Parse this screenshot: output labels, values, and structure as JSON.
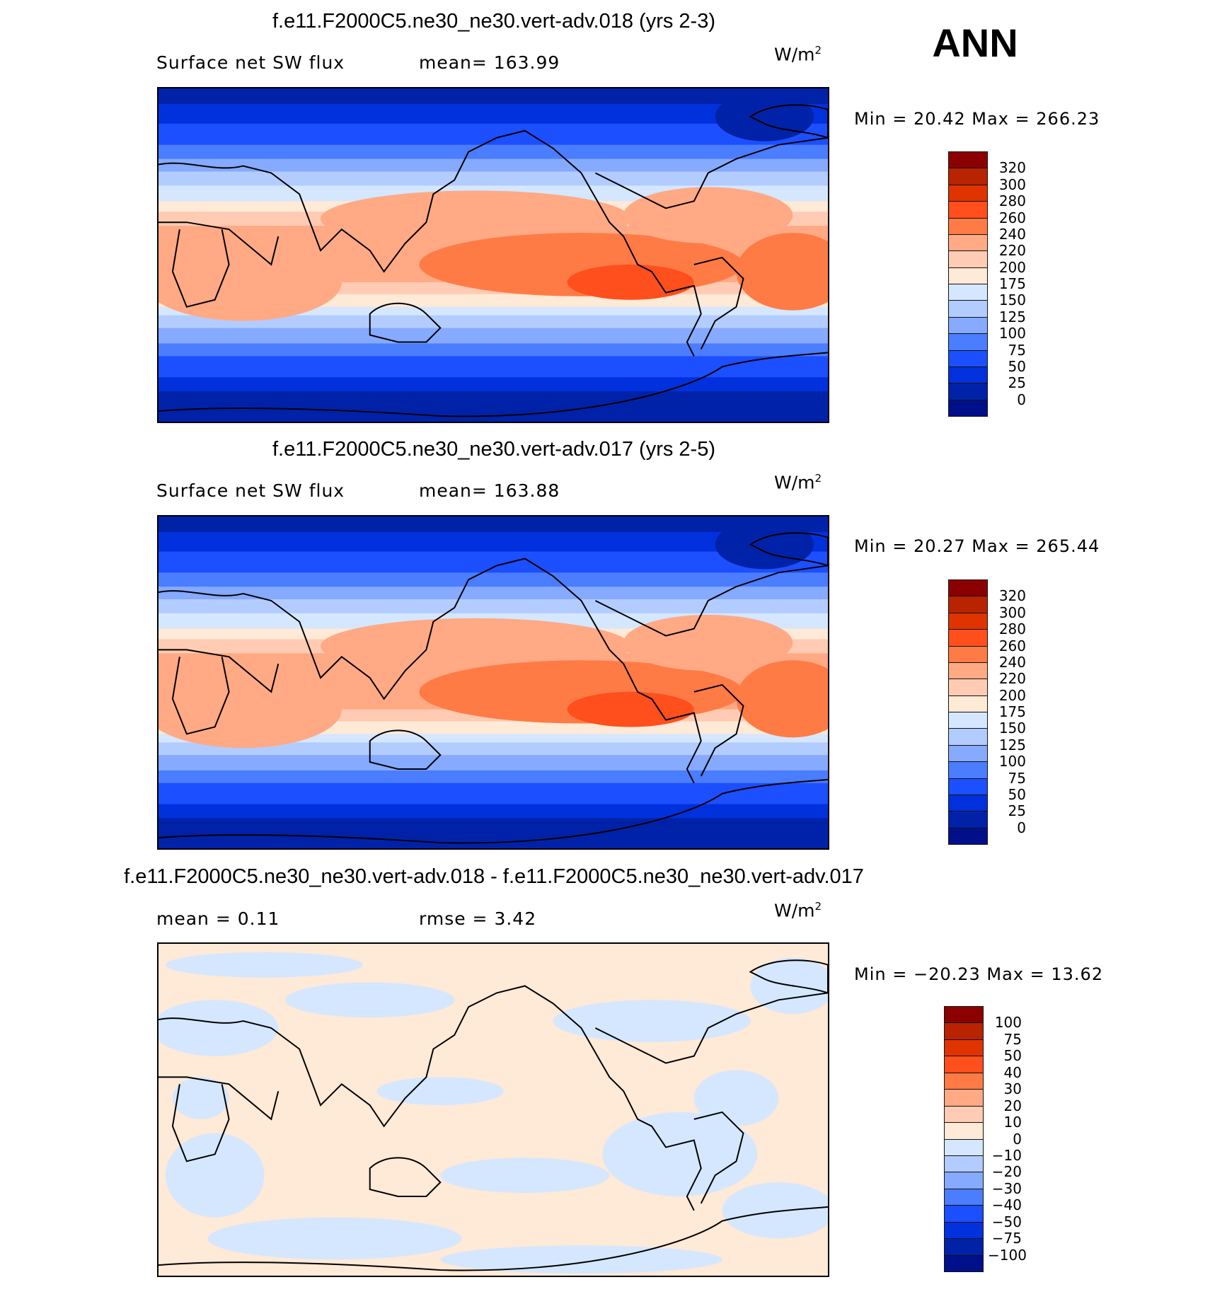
{
  "header": {
    "season": "ANN"
  },
  "panels": [
    {
      "title": "f.e11.F2000C5.ne30_ne30.vert-adv.018 (yrs 2-3)",
      "left_stat": "Surface net SW flux",
      "right_stat": "mean= 163.99",
      "units": "W/m",
      "units_sup": "2",
      "minmax": "Min =   20.42 Max = 266.23",
      "type": "field"
    },
    {
      "title": "f.e11.F2000C5.ne30_ne30.vert-adv.017 (yrs 2-5)",
      "left_stat": "Surface net SW flux",
      "right_stat": "mean= 163.88",
      "units": "W/m",
      "units_sup": "2",
      "minmax": "Min =   20.27 Max = 265.44",
      "type": "field"
    },
    {
      "title": "f.e11.F2000C5.ne30_ne30.vert-adv.018 - f.e11.F2000C5.ne30_ne30.vert-adv.017",
      "left_stat": "mean =    0.11",
      "right_stat": "rmse =    3.42",
      "units": "W/m",
      "units_sup": "2",
      "minmax": "Min = −20.23 Max =   13.62",
      "type": "diff"
    }
  ],
  "chart_data": [
    {
      "type": "heatmap",
      "title": "f.e11.F2000C5.ne30_ne30.vert-adv.018 (yrs 2-3)",
      "variable": "Surface net SW flux",
      "units": "W/m2",
      "mean": 163.99,
      "min": 20.42,
      "max": 266.23,
      "colorbar_levels": [
        "320",
        "300",
        "280",
        "260",
        "240",
        "220",
        "200",
        "175",
        "150",
        "125",
        "100",
        "75",
        "50",
        "25",
        "0"
      ]
    },
    {
      "type": "heatmap",
      "title": "f.e11.F2000C5.ne30_ne30.vert-adv.017 (yrs 2-5)",
      "variable": "Surface net SW flux",
      "units": "W/m2",
      "mean": 163.88,
      "min": 20.27,
      "max": 265.44,
      "colorbar_levels": [
        "320",
        "300",
        "280",
        "260",
        "240",
        "220",
        "200",
        "175",
        "150",
        "125",
        "100",
        "75",
        "50",
        "25",
        "0"
      ]
    },
    {
      "type": "heatmap",
      "title": "f.e11.F2000C5.ne30_ne30.vert-adv.018 - f.e11.F2000C5.ne30_ne30.vert-adv.017",
      "units": "W/m2",
      "mean": 0.11,
      "rmse": 3.42,
      "min": -20.23,
      "max": 13.62,
      "colorbar_levels": [
        "100",
        "75",
        "50",
        "40",
        "30",
        "20",
        "10",
        "0",
        "−10",
        "−20",
        "−30",
        "−40",
        "−50",
        "−75",
        "−100"
      ]
    }
  ],
  "palette": [
    "#8b0000",
    "#b82300",
    "#e03400",
    "#ff4f1c",
    "#ff7b45",
    "#ffa985",
    "#ffcbb2",
    "#ffe9d7",
    "#d4e7ff",
    "#b3ccff",
    "#85aaff",
    "#4a7dff",
    "#1c4fff",
    "#0031dd",
    "#0022a8",
    "#00108a"
  ]
}
